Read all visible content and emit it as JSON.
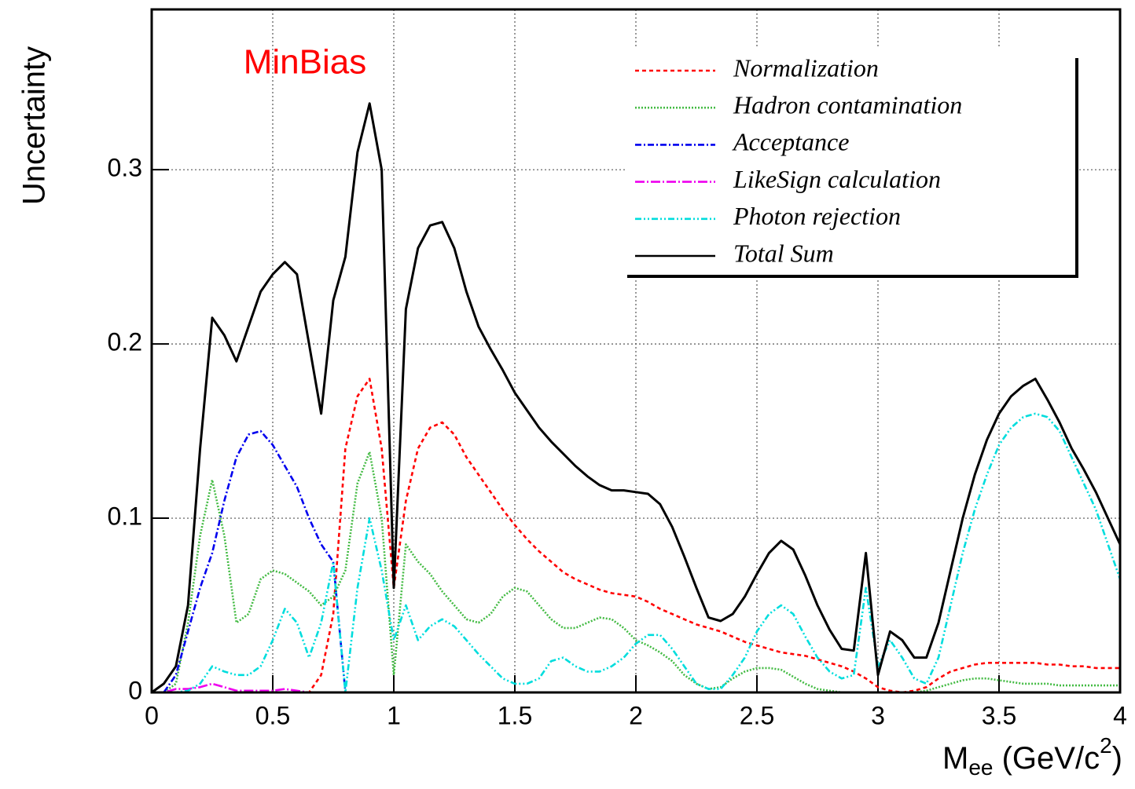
{
  "chart_data": {
    "type": "line",
    "annotation": "MinBias",
    "ylabel": "Uncertainty",
    "xlabel": [
      "M",
      "ee",
      " (GeV/c",
      "2",
      ")"
    ],
    "xlim": [
      0,
      4
    ],
    "ylim": [
      0,
      0.392
    ],
    "xticks": [
      0,
      0.5,
      1,
      1.5,
      2,
      2.5,
      3,
      3.5,
      4
    ],
    "yticks": [
      0,
      0.1,
      0.2,
      0.3
    ],
    "grid": true,
    "legend": "top-right",
    "x": [
      0,
      0.05,
      0.1,
      0.15,
      0.2,
      0.25,
      0.3,
      0.35,
      0.4,
      0.45,
      0.5,
      0.55,
      0.6,
      0.65,
      0.7,
      0.75,
      0.8,
      0.85,
      0.9,
      0.95,
      1,
      1.05,
      1.1,
      1.15,
      1.2,
      1.25,
      1.3,
      1.35,
      1.4,
      1.45,
      1.5,
      1.55,
      1.6,
      1.65,
      1.7,
      1.75,
      1.8,
      1.85,
      1.9,
      1.95,
      2,
      2.05,
      2.1,
      2.15,
      2.2,
      2.25,
      2.3,
      2.35,
      2.4,
      2.45,
      2.5,
      2.55,
      2.6,
      2.65,
      2.7,
      2.75,
      2.8,
      2.85,
      2.9,
      2.95,
      3,
      3.05,
      3.1,
      3.15,
      3.2,
      3.25,
      3.3,
      3.35,
      3.4,
      3.45,
      3.5,
      3.55,
      3.6,
      3.65,
      3.7,
      3.75,
      3.8,
      3.85,
      3.9,
      3.95,
      4
    ],
    "series": [
      {
        "name": "Normalization",
        "color": "#ff0000",
        "dash": "5,4",
        "values": [
          0,
          0,
          0,
          0,
          0,
          0,
          0,
          0,
          0,
          0,
          0,
          0,
          0,
          0,
          0.01,
          0.045,
          0.14,
          0.17,
          0.18,
          0.14,
          0.06,
          0.11,
          0.14,
          0.152,
          0.155,
          0.148,
          0.135,
          0.125,
          0.115,
          0.105,
          0.096,
          0.088,
          0.081,
          0.075,
          0.069,
          0.065,
          0.062,
          0.059,
          0.057,
          0.056,
          0.055,
          0.052,
          0.048,
          0.045,
          0.042,
          0.039,
          0.037,
          0.035,
          0.032,
          0.029,
          0.027,
          0.025,
          0.023,
          0.022,
          0.021,
          0.019,
          0.017,
          0.015,
          0.012,
          0.008,
          0.003,
          0.001,
          0,
          0.001,
          0.003,
          0.008,
          0.012,
          0.014,
          0.016,
          0.017,
          0.017,
          0.017,
          0.017,
          0.017,
          0.016,
          0.016,
          0.015,
          0.015,
          0.014,
          0.014,
          0.014
        ]
      },
      {
        "name": "Hadron contamination",
        "color": "#44bb44",
        "dash": "2,2",
        "values": [
          0,
          0,
          0.005,
          0.04,
          0.09,
          0.122,
          0.09,
          0.04,
          0.045,
          0.065,
          0.07,
          0.068,
          0.063,
          0.058,
          0.05,
          0.055,
          0.07,
          0.12,
          0.138,
          0.1,
          0.01,
          0.085,
          0.075,
          0.068,
          0.058,
          0.05,
          0.042,
          0.04,
          0.045,
          0.055,
          0.06,
          0.058,
          0.05,
          0.042,
          0.037,
          0.037,
          0.04,
          0.043,
          0.042,
          0.037,
          0.03,
          0.027,
          0.023,
          0.018,
          0.01,
          0.005,
          0.002,
          0.003,
          0.008,
          0.012,
          0.014,
          0.014,
          0.013,
          0.009,
          0.005,
          0.002,
          0.001,
          0,
          0,
          0,
          0,
          0,
          0,
          0,
          0.001,
          0.003,
          0.005,
          0.007,
          0.008,
          0.008,
          0.007,
          0.006,
          0.005,
          0.005,
          0.005,
          0.004,
          0.004,
          0.004,
          0.004,
          0.004,
          0.004
        ]
      },
      {
        "name": "Acceptance",
        "color": "#0000ee",
        "dash": "8,3,2,3",
        "values": [
          0,
          0,
          0.01,
          0.035,
          0.06,
          0.08,
          0.11,
          0.135,
          0.148,
          0.15,
          0.142,
          0.13,
          0.118,
          0.1,
          0.085,
          0.075,
          0,
          0,
          0,
          0,
          0,
          0,
          0,
          0,
          0,
          0,
          0,
          0,
          0,
          0,
          0,
          0,
          0,
          0,
          0,
          0,
          0,
          0,
          0,
          0,
          0,
          0,
          0,
          0,
          0,
          0,
          0,
          0,
          0,
          0,
          0,
          0,
          0,
          0,
          0,
          0,
          0,
          0,
          0,
          0,
          0,
          0,
          0,
          0,
          0,
          0,
          0,
          0,
          0,
          0,
          0,
          0,
          0,
          0,
          0,
          0,
          0,
          0,
          0,
          0,
          0
        ]
      },
      {
        "name": "LikeSign calculation",
        "color": "#ee00ee",
        "dash": "12,3,2,3",
        "values": [
          0,
          0,
          0.002,
          0.002,
          0.003,
          0.005,
          0.003,
          0.001,
          0.001,
          0.001,
          0.001,
          0.002,
          0.001,
          0,
          0,
          0,
          0,
          0,
          0,
          0,
          0,
          0,
          0,
          0,
          0,
          0,
          0,
          0,
          0,
          0,
          0,
          0,
          0,
          0,
          0,
          0,
          0,
          0,
          0,
          0,
          0,
          0,
          0,
          0,
          0,
          0,
          0,
          0,
          0,
          0,
          0,
          0,
          0,
          0,
          0,
          0,
          0,
          0,
          0,
          0,
          0,
          0,
          0,
          0,
          0,
          0,
          0,
          0,
          0,
          0,
          0,
          0,
          0,
          0,
          0,
          0,
          0,
          0,
          0,
          0,
          0
        ]
      },
      {
        "name": "Photon rejection",
        "color": "#00dddd",
        "dash": "8,3,2,3,2,3",
        "values": [
          0,
          0,
          0,
          0.001,
          0.005,
          0.015,
          0.012,
          0.01,
          0.01,
          0.015,
          0.03,
          0.048,
          0.04,
          0.02,
          0.04,
          0.075,
          0,
          0.06,
          0.1,
          0.07,
          0.03,
          0.05,
          0.03,
          0.038,
          0.042,
          0.038,
          0.03,
          0.022,
          0.015,
          0.008,
          0.005,
          0.005,
          0.008,
          0.018,
          0.02,
          0.015,
          0.012,
          0.012,
          0.015,
          0.02,
          0.028,
          0.033,
          0.033,
          0.025,
          0.015,
          0.005,
          0.002,
          0.002,
          0.01,
          0.02,
          0.035,
          0.045,
          0.05,
          0.045,
          0.032,
          0.02,
          0.012,
          0.008,
          0.01,
          0.06,
          0.015,
          0.03,
          0.02,
          0.008,
          0.005,
          0.02,
          0.05,
          0.08,
          0.105,
          0.125,
          0.142,
          0.152,
          0.158,
          0.16,
          0.158,
          0.15,
          0.135,
          0.12,
          0.105,
          0.085,
          0.065
        ]
      },
      {
        "name": "Total Sum",
        "color": "#000000",
        "dash": "none",
        "values": [
          0,
          0.005,
          0.015,
          0.05,
          0.14,
          0.215,
          0.205,
          0.19,
          0.21,
          0.23,
          0.24,
          0.247,
          0.24,
          0.2,
          0.16,
          0.225,
          0.25,
          0.31,
          0.338,
          0.3,
          0.06,
          0.22,
          0.255,
          0.268,
          0.27,
          0.255,
          0.23,
          0.21,
          0.197,
          0.185,
          0.172,
          0.162,
          0.152,
          0.144,
          0.137,
          0.13,
          0.124,
          0.119,
          0.116,
          0.116,
          0.115,
          0.114,
          0.108,
          0.095,
          0.078,
          0.06,
          0.043,
          0.041,
          0.045,
          0.055,
          0.068,
          0.08,
          0.087,
          0.082,
          0.067,
          0.05,
          0.036,
          0.025,
          0.024,
          0.08,
          0.01,
          0.035,
          0.03,
          0.02,
          0.02,
          0.04,
          0.07,
          0.1,
          0.125,
          0.145,
          0.16,
          0.17,
          0.176,
          0.18,
          0.168,
          0.155,
          0.14,
          0.128,
          0.115,
          0.1,
          0.085
        ]
      }
    ]
  }
}
